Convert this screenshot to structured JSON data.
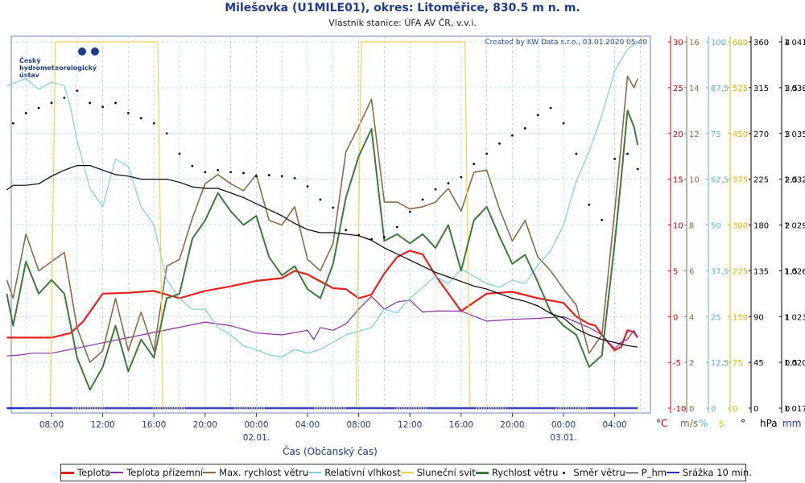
{
  "title": "Milešovka (U1MILE01), okres: Litoměřice, 830.5 m n. m.",
  "subtitle": "Vlastník stanice: ÚFA AV ČR, v.v.i.",
  "credit": "Created by KW Data s.r.o., 03.01.2020 05:49",
  "logo": {
    "lines": [
      "Český",
      "hydrometeorologický",
      "ústav"
    ],
    "icon": "chmi-logo-icon"
  },
  "colors": {
    "teplota": "#e8201c",
    "teplota_prizemni": "#8a2fa0",
    "max_vitr": "#8b6a4a",
    "vlhkost": "#7ccfdc",
    "slunce": "#f4d24a",
    "vitr": "#3f7a3a",
    "smer": "#000000",
    "p_hm": "#000000",
    "srazka": "#2233cc",
    "grid": "#a7d8dc"
  },
  "chart_data": {
    "type": "line",
    "xlabel": "Čas (Občanský čas)",
    "x_ticks": [
      "08:00",
      "12:00",
      "16:00",
      "20:00",
      "00:00",
      "04:00",
      "08:00",
      "12:00",
      "16:00",
      "20:00",
      "00:00",
      "04:00"
    ],
    "date_labels": [
      {
        "tick_index": 4,
        "label": "02.01."
      },
      {
        "tick_index": 10,
        "label": "03.01."
      }
    ],
    "x_range_hours": [
      4.5,
      53.8
    ],
    "axes": [
      {
        "id": "temp",
        "unit": "°C",
        "color": "#cc0000",
        "ticks": [
          "-10",
          "-5",
          "0",
          "5",
          "10",
          "15",
          "20",
          "25",
          "30"
        ],
        "range": [
          -10,
          30
        ]
      },
      {
        "id": "wind",
        "unit": "m/s",
        "color": "#8b6a4a",
        "ticks": [
          "0",
          "2",
          "4",
          "6",
          "8",
          "10",
          "12",
          "14",
          "16"
        ],
        "range": [
          0,
          16
        ]
      },
      {
        "id": "rh",
        "unit": "%",
        "color": "#5ab8c8",
        "ticks": [
          "0",
          "12,5",
          "25",
          "37,5",
          "50",
          "62,5",
          "75",
          "87,5",
          "100"
        ],
        "range": [
          0,
          100
        ]
      },
      {
        "id": "sun",
        "unit": "s",
        "color": "#e0b400",
        "ticks": [
          "0",
          "75",
          "150",
          "225",
          "300",
          "375",
          "450",
          "525",
          "600"
        ],
        "range": [
          0,
          600
        ]
      },
      {
        "id": "dir",
        "unit": "°",
        "color": "#000000",
        "ticks": [
          "0",
          "45",
          "90",
          "135",
          "180",
          "225",
          "270",
          "315",
          "360"
        ],
        "range": [
          0,
          360
        ]
      },
      {
        "id": "press",
        "unit": "hPa",
        "color": "#000000",
        "ticks": [
          "1 017",
          "1 020",
          "1 023",
          "1 026",
          "1 029",
          "1 032",
          "1 035",
          "1 038",
          "1 041"
        ],
        "range": [
          1017,
          1041
        ]
      },
      {
        "id": "precip",
        "unit": "mm",
        "color": "#2233cc",
        "ticks": [
          "0",
          "0,5",
          "1",
          "1,5",
          "2",
          "2,5",
          "3",
          "3,5",
          "4"
        ],
        "range": [
          0,
          4
        ]
      }
    ],
    "series": [
      {
        "name": "Teplota",
        "axis": "temp",
        "color": "#e8201c",
        "x": [
          4.5,
          8,
          9.5,
          10.5,
          12,
          14,
          16,
          18,
          20,
          22,
          24,
          26,
          27,
          28,
          30,
          31,
          32,
          33,
          34,
          35,
          36,
          37,
          38,
          40,
          42,
          44,
          46,
          48,
          49,
          50,
          50.5,
          51,
          52,
          52.5,
          53,
          53.5,
          53.8
        ],
        "y": [
          -2.3,
          -2.3,
          -1.8,
          -0.5,
          2.5,
          2.6,
          2.8,
          2,
          2.8,
          3.3,
          3.9,
          4.2,
          5,
          4.6,
          3.1,
          3,
          2,
          2.4,
          4.7,
          6.5,
          7.2,
          6.8,
          4.5,
          0.6,
          2.5,
          2.7,
          2,
          1.5,
          0,
          -0.8,
          -1,
          -2,
          -3.7,
          -3.3,
          -1.5,
          -1.7,
          -2.3
        ]
      },
      {
        "name": "Teplota přízemní",
        "axis": "temp",
        "color": "#8a2fa0",
        "x": [
          4.5,
          5.5,
          6.5,
          8,
          20,
          22,
          24,
          26,
          28,
          28.5,
          29,
          30,
          31,
          32,
          33,
          34,
          35,
          36,
          37,
          38,
          40,
          42,
          44,
          46,
          48,
          50,
          51,
          52,
          52.5,
          53,
          53.5,
          53.8
        ],
        "y": [
          -4.3,
          -4.2,
          -4,
          -4,
          -0.6,
          -1,
          -1.8,
          -2,
          -1.5,
          -2.5,
          -1.2,
          -1.5,
          -0.8,
          0.8,
          2.2,
          0.8,
          1.6,
          1.8,
          0.5,
          0.6,
          0.6,
          -0.5,
          -0.3,
          -0.2,
          0,
          -1.2,
          -2,
          -3.5,
          -2.8,
          -2.5,
          -1.5,
          -2.3
        ]
      },
      {
        "name": "Max. rychlost větru",
        "axis": "wind",
        "color": "#8b6a4a",
        "x": [
          4.5,
          5,
          6,
          7,
          8,
          9,
          10,
          11,
          12,
          13,
          14,
          15,
          16,
          17,
          18,
          19,
          20,
          21,
          22,
          23,
          24,
          25,
          26,
          27,
          28,
          29,
          30,
          31,
          32,
          33,
          34,
          35,
          36,
          37,
          38,
          39,
          40,
          41,
          42,
          43,
          44,
          45,
          46,
          47,
          48,
          49,
          50,
          51,
          52,
          52.5,
          53,
          53.5,
          53.8
        ],
        "y": [
          5.6,
          4.8,
          7.6,
          6,
          6.4,
          6.8,
          3.5,
          2,
          2.5,
          4.8,
          2.5,
          4.2,
          2.5,
          6.2,
          6.5,
          8.3,
          9.8,
          10.2,
          9.8,
          9.5,
          10.2,
          8.2,
          8,
          8.8,
          6.5,
          6,
          7.2,
          11.2,
          12.3,
          13.5,
          9,
          9,
          8.7,
          8.8,
          9,
          9.6,
          8.6,
          10.3,
          10.4,
          8.7,
          7.3,
          8.2,
          6.6,
          6,
          5.2,
          4.5,
          2.4,
          3.2,
          8.6,
          11.5,
          14.5,
          14,
          14.4
        ]
      },
      {
        "name": "Relativní vlhkost",
        "axis": "rh",
        "color": "#7ccfdc",
        "x": [
          4.5,
          6,
          7,
          8,
          9,
          9.5,
          10,
          11,
          12,
          13,
          14,
          15,
          16,
          17,
          18,
          19,
          20,
          21,
          22,
          23,
          24,
          25,
          26,
          27,
          28,
          29,
          30,
          31,
          32,
          33,
          34,
          35,
          36,
          37,
          38,
          39,
          40,
          41,
          42,
          43,
          44,
          45,
          46,
          47,
          48,
          49,
          50,
          51,
          52,
          53,
          53.8
        ],
        "y": [
          88,
          90,
          87,
          89,
          88,
          82,
          73,
          60,
          55,
          68,
          66,
          55,
          50,
          35,
          30,
          27,
          27,
          22,
          20,
          17,
          16,
          14.5,
          14,
          16,
          15,
          16,
          18,
          20,
          21,
          22,
          27,
          26,
          30,
          33,
          36,
          34,
          38,
          36,
          34,
          33,
          35,
          34,
          39,
          43,
          50,
          62,
          70,
          80,
          92,
          98,
          100
        ]
      },
      {
        "name": "Sluneční svit",
        "axis": "sun",
        "color": "#f4d24a",
        "x": [
          4.5,
          7.9,
          8.3,
          16.3,
          16.7,
          31.8,
          32.2,
          40.3,
          40.7,
          53.8
        ],
        "y": [
          0,
          0,
          600,
          600,
          0,
          0,
          600,
          600,
          0,
          0
        ]
      },
      {
        "name": "Rychlost větru",
        "axis": "wind",
        "color": "#3f7a3a",
        "x": [
          4.5,
          5,
          6,
          7,
          8,
          9,
          10,
          11,
          12,
          13,
          14,
          15,
          16,
          17,
          18,
          19,
          20,
          21,
          22,
          23,
          24,
          25,
          26,
          27,
          28,
          29,
          30,
          31,
          32,
          33,
          34,
          35,
          36,
          37,
          38,
          39,
          40,
          41,
          42,
          43,
          44,
          45,
          46,
          47,
          48,
          49,
          50,
          51,
          52,
          52.5,
          53,
          53.5,
          53.8
        ],
        "y": [
          5,
          3.6,
          6.4,
          5,
          5.6,
          5,
          2.2,
          0.8,
          1.8,
          3.6,
          1.6,
          3,
          2.2,
          4.8,
          5,
          7.4,
          8.2,
          9.4,
          8.6,
          8,
          8.4,
          6.6,
          5.8,
          6.2,
          5.2,
          4.8,
          6.3,
          9.2,
          11,
          12.2,
          7.3,
          7.6,
          7.2,
          7.6,
          7,
          8,
          6,
          8.2,
          8.8,
          7.5,
          6.3,
          6.7,
          5.5,
          4.2,
          3.6,
          3.2,
          1.8,
          2.3,
          7.2,
          10,
          13,
          12.3,
          11.5
        ]
      },
      {
        "name": "Směr větru",
        "axis": "dir",
        "color": "#000000",
        "x": [
          5,
          6,
          7,
          8,
          9,
          10,
          11,
          12,
          13,
          14,
          15,
          16,
          17,
          18,
          19,
          20,
          21,
          22,
          23,
          24,
          25,
          26,
          27,
          28,
          29,
          30,
          31,
          32,
          33,
          34,
          35,
          36,
          37,
          38,
          39,
          40,
          41,
          42,
          43,
          44,
          45,
          46,
          47,
          48,
          49,
          50,
          51,
          52,
          53,
          53.8
        ],
        "y": [
          280,
          290,
          295,
          300,
          305,
          312,
          300,
          296,
          300,
          290,
          285,
          280,
          270,
          250,
          238,
          232,
          234,
          232,
          231,
          228,
          229,
          228,
          226,
          218,
          205,
          197,
          175,
          170,
          166,
          168,
          178,
          193,
          205,
          215,
          221,
          227,
          240,
          250,
          260,
          268,
          275,
          288,
          295,
          280,
          250,
          200,
          185,
          245,
          250,
          235
        ]
      },
      {
        "name": "P_hm",
        "axis": "press",
        "color": "#000000",
        "x": [
          4.5,
          5,
          6,
          7,
          8,
          9,
          10,
          11,
          12,
          13,
          14,
          15,
          16,
          17,
          18,
          19,
          20,
          21,
          22,
          23,
          24,
          25,
          26,
          27,
          28,
          29,
          30,
          31,
          32,
          33,
          34,
          35,
          36,
          37,
          38,
          39,
          40,
          41,
          42,
          43,
          44,
          45,
          46,
          47,
          48,
          49,
          50,
          51,
          52,
          53,
          53.8
        ],
        "y": [
          1031.3,
          1031.6,
          1031.6,
          1031.7,
          1032.2,
          1032.6,
          1032.9,
          1032.9,
          1032.6,
          1032.3,
          1032.2,
          1032,
          1032,
          1032,
          1031.8,
          1031.5,
          1031.4,
          1031.4,
          1031.1,
          1030.8,
          1030.4,
          1030,
          1029.6,
          1029.1,
          1028.7,
          1028.5,
          1028.5,
          1028.4,
          1028.3,
          1028,
          1027.5,
          1027.1,
          1026.7,
          1026.3,
          1025.9,
          1025.6,
          1025.3,
          1025,
          1024.8,
          1024.5,
          1024.2,
          1024,
          1023.7,
          1023.2,
          1022.9,
          1022.2,
          1021.8,
          1021.5,
          1021.3,
          1021.1,
          1021
        ]
      },
      {
        "name": "Srážka 10 min.",
        "axis": "precip",
        "color": "#2233cc",
        "x": [
          4.5,
          53.8
        ],
        "y": [
          0,
          0
        ]
      }
    ]
  }
}
